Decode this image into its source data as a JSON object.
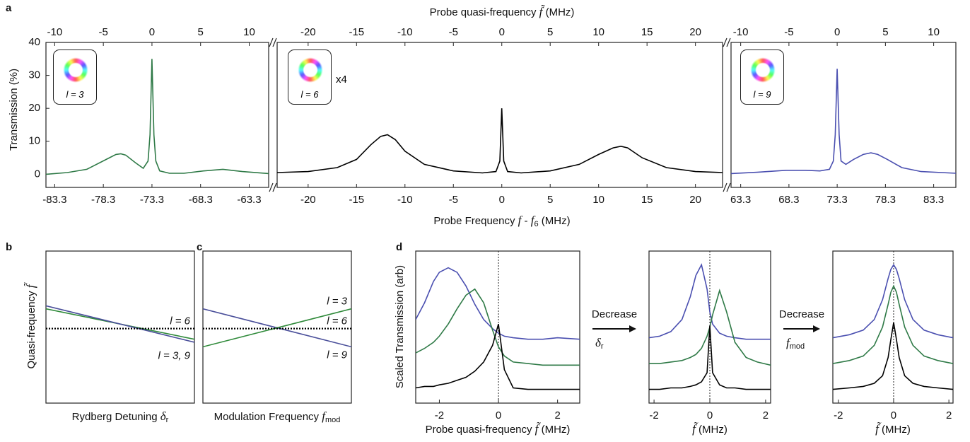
{
  "chart_data": [
    {
      "type": "line",
      "panel_label": "a",
      "ylabel": {
        "text": "Transmission (%)"
      },
      "x": [
        -84.2,
        -82,
        -80,
        -78,
        -77,
        -76.5,
        -76,
        -75,
        -74.2,
        -73.7,
        -73.5,
        -73.3,
        -73.1,
        -72.9,
        -72.5,
        -71.5,
        -70,
        -68,
        -66,
        -64,
        -61.3
      ],
      "series": [
        {
          "color": "#2f7a47",
          "values": [
            0,
            0.5,
            1.5,
            4.5,
            6,
            6.2,
            5.8,
            3.5,
            1.8,
            4,
            12,
            35,
            12,
            4,
            1,
            0.3,
            0.3,
            1,
            1.5,
            0.8,
            0.2
          ]
        }
      ],
      "xlim": [
        -84.2,
        -61.3
      ],
      "xticks": [
        -83.3,
        -78.3,
        -73.3,
        -68.3,
        -63.3
      ],
      "x2lim": [
        -10.9,
        12
      ],
      "x2ticks": [
        -10,
        -5,
        0,
        5,
        10
      ],
      "ylim": [
        -4,
        40
      ],
      "yticks": [
        0,
        10,
        20,
        30,
        40
      ],
      "inset": "l = 3"
    },
    {
      "type": "line",
      "xlabel": {
        "text": "Probe Frequency ",
        "symbol": "f",
        "suffix": " - ",
        "symbol2": "f",
        "subscript": "6",
        "suffix2": " (MHz)"
      },
      "x2label": {
        "text": "Probe quasi-frequency ",
        "symbol": "f̃",
        "suffix": " (MHz)"
      },
      "x": [
        -23.2,
        -20,
        -17,
        -15,
        -13.5,
        -12.5,
        -11.8,
        -11,
        -10,
        -8,
        -5,
        -2,
        -0.6,
        -0.2,
        0,
        0.2,
        0.6,
        2,
        5,
        8,
        10,
        11.5,
        12.3,
        13,
        14.5,
        17,
        20,
        22.8
      ],
      "series": [
        {
          "color": "#000000",
          "values": [
            0.5,
            0.8,
            2,
            4.5,
            9,
            11.5,
            12,
            10.5,
            7,
            3,
            1,
            0.4,
            0.8,
            4,
            20,
            4,
            0.8,
            0.4,
            1,
            3,
            6,
            8,
            8.5,
            8,
            5,
            2,
            0.8,
            0.5
          ]
        }
      ],
      "xlim": [
        -23.2,
        22.8
      ],
      "xticks": [
        -20,
        -15,
        -10,
        -5,
        0,
        5,
        10,
        15,
        20
      ],
      "x2lim": [
        -23.2,
        22.8
      ],
      "x2ticks": [
        -20,
        -15,
        -10,
        -5,
        0,
        5,
        10,
        15,
        20
      ],
      "ylim": [
        -4,
        40
      ],
      "inset": "l = 6",
      "inset_note": "x4"
    },
    {
      "type": "line",
      "x": [
        62.3,
        65,
        68,
        70,
        71.5,
        72.5,
        72.9,
        73.1,
        73.3,
        73.5,
        73.7,
        74.2,
        75,
        76,
        76.8,
        77.5,
        78.5,
        80,
        82,
        85.6
      ],
      "series": [
        {
          "color": "#4a4fb0",
          "values": [
            0.2,
            0.6,
            1.2,
            1.2,
            1,
            1.5,
            4,
            12,
            32,
            12,
            4,
            3,
            4.5,
            6,
            6.5,
            6,
            4.5,
            2,
            0.8,
            0.3
          ]
        }
      ],
      "xlim": [
        62.3,
        85.6
      ],
      "xticks": [
        63.3,
        68.3,
        73.3,
        78.3,
        83.3
      ],
      "x2lim": [
        -11,
        12.3
      ],
      "x2ticks": [
        -10,
        -5,
        0,
        5,
        10
      ],
      "ylim": [
        -4,
        40
      ],
      "inset": "l = 9"
    },
    {
      "type": "line",
      "panel_label": "b",
      "ylabel": {
        "text": "Quasi-frequency ",
        "symbol": "f̃"
      },
      "xlabel": {
        "text": "Rydberg Detuning ",
        "symbol": "δ",
        "subscript": "r"
      },
      "x": [
        0,
        1
      ],
      "xlim": [
        0,
        1
      ],
      "ylim": [
        0,
        1
      ],
      "annotation": "l = 3, 9",
      "series": [
        {
          "color": "#2f8a3a",
          "values": [
            0.62,
            0.42
          ]
        },
        {
          "color": "#4a4f9a",
          "values": [
            0.64,
            0.4
          ]
        },
        {
          "color": "#000000",
          "values": [
            0.49,
            0.49
          ],
          "dash": true,
          "label": "l = 6",
          "label_side": "above"
        }
      ]
    },
    {
      "type": "line",
      "panel_label": "c",
      "xlabel": {
        "text": "Modulation Frequency ",
        "symbol": "f",
        "subscript": "mod"
      },
      "x": [
        0,
        1
      ],
      "xlim": [
        0,
        1
      ],
      "ylim": [
        0,
        1
      ],
      "series": [
        {
          "color": "#4a4f9a",
          "values": [
            0.62,
            0.37
          ],
          "label": "l = 9",
          "label_side": "below"
        },
        {
          "color": "#2f8a3a",
          "values": [
            0.37,
            0.62
          ],
          "label": "l = 3",
          "label_side": "above"
        },
        {
          "color": "#000000",
          "values": [
            0.49,
            0.49
          ],
          "dash": true,
          "label": "l = 6",
          "label_side": "above"
        }
      ]
    },
    {
      "type": "line",
      "panel_label": "d",
      "ylabel": {
        "text": "Scaled Transmission (arb)"
      },
      "xlabel": {
        "text": "Probe quasi-frequency ",
        "symbol": "f̃",
        "suffix": " (MHz)"
      },
      "x": [
        -2.8,
        -2.5,
        -2.2,
        -2,
        -1.7,
        -1.4,
        -1.1,
        -0.8,
        -0.5,
        -0.2,
        0,
        0.2,
        0.5,
        1,
        1.5,
        2,
        2.75
      ],
      "series": [
        {
          "color": "#4a4fb0",
          "values": [
            0.55,
            0.66,
            0.8,
            0.86,
            0.89,
            0.86,
            0.77,
            0.65,
            0.55,
            0.49,
            0.46,
            0.44,
            0.43,
            0.42,
            0.42,
            0.43,
            0.42
          ]
        },
        {
          "color": "#2f7a47",
          "values": [
            0.33,
            0.36,
            0.4,
            0.44,
            0.52,
            0.62,
            0.71,
            0.75,
            0.66,
            0.48,
            0.37,
            0.31,
            0.27,
            0.26,
            0.25,
            0.25,
            0.25
          ]
        },
        {
          "color": "#000000",
          "values": [
            0.1,
            0.11,
            0.11,
            0.12,
            0.13,
            0.15,
            0.17,
            0.21,
            0.27,
            0.38,
            0.52,
            0.22,
            0.1,
            0.09,
            0.09,
            0.09,
            0.09
          ]
        }
      ],
      "xlim": [
        -2.8,
        2.75
      ],
      "xticks": [
        -2,
        0,
        2
      ],
      "ylim": [
        0,
        1
      ],
      "vline": 0,
      "arrow": {
        "text": "Decrease",
        "symbol": "δ",
        "subscript": "r"
      }
    },
    {
      "type": "line",
      "xlabel": {
        "symbol": "f̃",
        "suffix": " (MHz)"
      },
      "x": [
        -2.18,
        -1.8,
        -1.4,
        -1,
        -0.7,
        -0.5,
        -0.3,
        -0.1,
        0,
        0.1,
        0.35,
        0.6,
        0.9,
        1.3,
        1.7,
        2.18
      ],
      "series": [
        {
          "color": "#4a4fb0",
          "values": [
            0.43,
            0.44,
            0.47,
            0.55,
            0.7,
            0.84,
            0.91,
            0.75,
            0.6,
            0.52,
            0.46,
            0.44,
            0.43,
            0.42,
            0.42,
            0.42
          ]
        },
        {
          "color": "#2f7a47",
          "values": [
            0.26,
            0.26,
            0.27,
            0.28,
            0.3,
            0.32,
            0.36,
            0.44,
            0.5,
            0.58,
            0.74,
            0.6,
            0.4,
            0.3,
            0.27,
            0.25
          ]
        },
        {
          "color": "#000000",
          "values": [
            0.09,
            0.09,
            0.1,
            0.1,
            0.11,
            0.12,
            0.14,
            0.2,
            0.51,
            0.2,
            0.12,
            0.1,
            0.1,
            0.09,
            0.09,
            0.09
          ]
        }
      ],
      "xlim": [
        -2.18,
        2.18
      ],
      "xticks": [
        -2,
        0,
        2
      ],
      "ylim": [
        0,
        1
      ],
      "vline": 0,
      "arrow": {
        "text": "Decrease",
        "symbol": "f",
        "subscript": "mod"
      }
    },
    {
      "type": "line",
      "xlabel": {
        "symbol": "f̃",
        "suffix": " (MHz)"
      },
      "x": [
        -2.2,
        -1.6,
        -1.1,
        -0.7,
        -0.4,
        -0.2,
        -0.1,
        0,
        0.1,
        0.2,
        0.4,
        0.7,
        1.1,
        1.6,
        2.15
      ],
      "series": [
        {
          "color": "#4a4fb0",
          "values": [
            0.43,
            0.45,
            0.48,
            0.55,
            0.68,
            0.82,
            0.88,
            0.91,
            0.88,
            0.82,
            0.68,
            0.55,
            0.48,
            0.45,
            0.43
          ]
        },
        {
          "color": "#2f7a47",
          "values": [
            0.26,
            0.28,
            0.31,
            0.38,
            0.5,
            0.65,
            0.73,
            0.77,
            0.73,
            0.65,
            0.5,
            0.38,
            0.31,
            0.28,
            0.26
          ]
        },
        {
          "color": "#000000",
          "values": [
            0.09,
            0.1,
            0.11,
            0.13,
            0.18,
            0.3,
            0.42,
            0.53,
            0.42,
            0.3,
            0.18,
            0.13,
            0.11,
            0.1,
            0.09
          ]
        }
      ],
      "xlim": [
        -2.2,
        2.15
      ],
      "xticks": [
        -2,
        0,
        2
      ],
      "ylim": [
        0,
        1
      ],
      "vline": 0
    }
  ]
}
